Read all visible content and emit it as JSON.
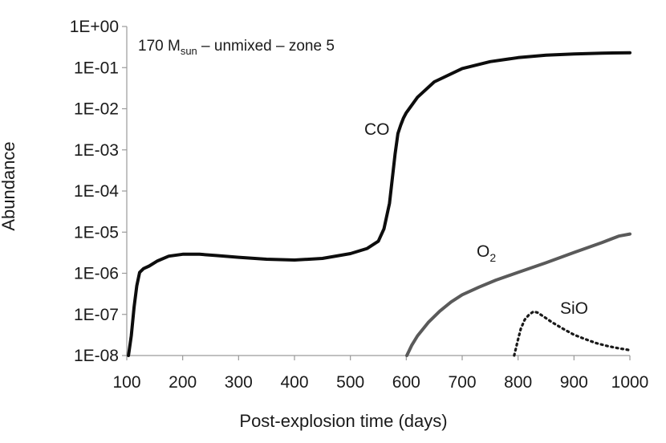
{
  "chart_data": {
    "type": "line",
    "title_parts": {
      "prefix": "170 M",
      "subscript": "sun",
      "suffix": " – unmixed – zone 5"
    },
    "xlabel": "Post-explosion time (days)",
    "ylabel": "Abundance",
    "xlim": [
      100,
      1000
    ],
    "ylim": [
      1e-08,
      1
    ],
    "yscale": "log",
    "grid": false,
    "x_ticks": [
      "100",
      "200",
      "300",
      "400",
      "500",
      "600",
      "700",
      "800",
      "900",
      "1000"
    ],
    "y_ticks": [
      "1E-08",
      "1E-07",
      "1E-06",
      "1E-05",
      "1E-04",
      "1E-03",
      "1E-02",
      "1E-01",
      "1E+00"
    ],
    "series": [
      {
        "name": "CO",
        "color": "#0d0d0d",
        "style": "solid",
        "x": [
          103,
          108,
          113,
          118,
          123,
          130,
          140,
          155,
          175,
          200,
          230,
          260,
          300,
          350,
          400,
          450,
          500,
          530,
          550,
          560,
          570,
          575,
          580,
          585,
          590,
          595,
          600,
          620,
          650,
          700,
          750,
          800,
          850,
          900,
          950,
          1000
        ],
        "y": [
          1e-08,
          3e-08,
          1.5e-07,
          5e-07,
          1.05e-06,
          1.3e-06,
          1.5e-06,
          2e-06,
          2.6e-06,
          2.9e-06,
          2.9e-06,
          2.7e-06,
          2.45e-06,
          2.2e-06,
          2.1e-06,
          2.3e-06,
          3e-06,
          4e-06,
          6e-06,
          1.2e-05,
          5e-05,
          0.0002,
          0.0008,
          0.0025,
          0.004,
          0.006,
          0.008,
          0.019,
          0.045,
          0.095,
          0.14,
          0.175,
          0.2,
          0.215,
          0.225,
          0.23
        ]
      },
      {
        "name": "O2",
        "label_main": "O",
        "label_sub": "2",
        "color": "#5a5a5a",
        "style": "solid",
        "x": [
          601,
          610,
          620,
          640,
          660,
          680,
          700,
          730,
          760,
          800,
          850,
          900,
          950,
          980,
          1000
        ],
        "y": [
          1e-08,
          1.8e-08,
          3e-08,
          6.5e-08,
          1.2e-07,
          2e-07,
          3e-07,
          4.6e-07,
          6.8e-07,
          1.05e-06,
          1.8e-06,
          3.2e-06,
          5.6e-06,
          8e-06,
          9e-06
        ]
      },
      {
        "name": "SiO",
        "color": "#1a1a1a",
        "style": "dotted",
        "x": [
          793,
          800,
          805,
          812,
          820,
          828,
          835,
          845,
          860,
          880,
          900,
          920,
          940,
          960,
          980,
          1000
        ],
        "y": [
          1e-08,
          2.5e-08,
          4.5e-08,
          7.5e-08,
          1e-07,
          1.18e-07,
          1.1e-07,
          9e-08,
          6.5e-08,
          4.5e-08,
          3.2e-08,
          2.5e-08,
          2e-08,
          1.7e-08,
          1.5e-08,
          1.35e-08
        ]
      }
    ]
  }
}
